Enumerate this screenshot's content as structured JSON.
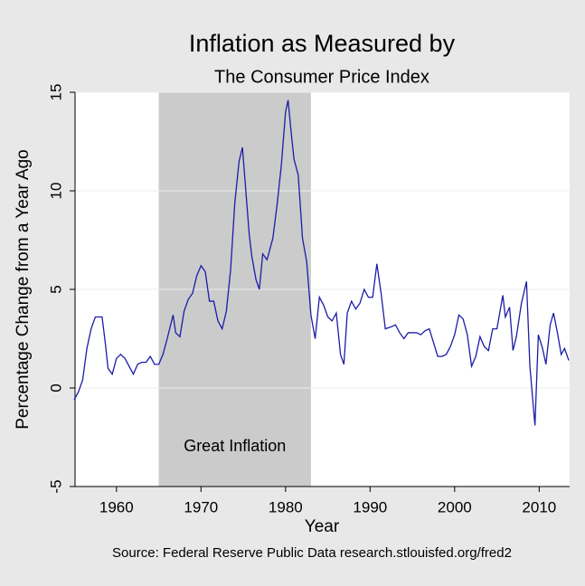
{
  "chart_data": {
    "type": "line",
    "title": "Inflation as Measured by",
    "subtitle": "The Consumer Price Index",
    "x_label": "Year",
    "y_label": "Percentage Change from a Year Ago",
    "source": "Source: Federal Reserve Public Data research.stlouisfed.org/fred2",
    "annotation": "Great Inflation",
    "shaded_region": [
      1965,
      1983
    ],
    "xlim": [
      1955.1,
      2013.6
    ],
    "ylim": [
      -5,
      15
    ],
    "xticks": [
      1960,
      1970,
      1980,
      1990,
      2000,
      2010
    ],
    "yticks": [
      -5,
      0,
      5,
      10,
      15
    ],
    "grid": true,
    "x": [
      1955.0,
      1955.5,
      1956.0,
      1956.5,
      1957.0,
      1957.5,
      1958.0,
      1958.3,
      1958.7,
      1959.0,
      1959.5,
      1960.0,
      1960.5,
      1961.0,
      1961.5,
      1962.0,
      1962.5,
      1963.0,
      1963.5,
      1964.0,
      1964.5,
      1965.0,
      1965.5,
      1966.0,
      1966.7,
      1967.0,
      1967.5,
      1968.0,
      1968.5,
      1969.0,
      1969.5,
      1970.0,
      1970.5,
      1971.0,
      1971.5,
      1972.0,
      1972.5,
      1973.0,
      1973.5,
      1974.0,
      1974.5,
      1974.9,
      1975.3,
      1975.7,
      1976.0,
      1976.5,
      1976.9,
      1977.3,
      1977.8,
      1978.0,
      1978.5,
      1979.0,
      1979.5,
      1980.0,
      1980.3,
      1980.7,
      1981.0,
      1981.5,
      1982.0,
      1982.5,
      1983.0,
      1983.5,
      1984.0,
      1984.5,
      1985.0,
      1985.5,
      1986.0,
      1986.5,
      1986.9,
      1987.3,
      1987.8,
      1988.3,
      1988.8,
      1989.3,
      1989.8,
      1990.3,
      1990.8,
      1991.3,
      1991.8,
      1992.5,
      1993.0,
      1993.5,
      1994.0,
      1994.5,
      1995.0,
      1995.5,
      1996.0,
      1996.5,
      1997.0,
      1997.5,
      1998.0,
      1998.5,
      1999.0,
      1999.5,
      2000.0,
      2000.5,
      2001.0,
      2001.5,
      2002.0,
      2002.5,
      2003.0,
      2003.5,
      2004.0,
      2004.5,
      2005.0,
      2005.7,
      2006.0,
      2006.5,
      2006.9,
      2007.3,
      2007.9,
      2008.5,
      2008.9,
      2009.5,
      2009.9,
      2010.4,
      2010.8,
      2011.3,
      2011.7,
      2012.2,
      2012.6,
      2013.0,
      2013.5
    ],
    "series": [
      {
        "name": "CPI",
        "color": "#1c1ca8",
        "values": [
          -0.6,
          -0.2,
          0.4,
          2.0,
          3.0,
          3.6,
          3.6,
          3.6,
          2.2,
          1.0,
          0.7,
          1.5,
          1.7,
          1.5,
          1.1,
          0.7,
          1.2,
          1.3,
          1.3,
          1.6,
          1.2,
          1.2,
          1.7,
          2.5,
          3.7,
          2.8,
          2.6,
          3.9,
          4.5,
          4.8,
          5.7,
          6.2,
          5.9,
          4.4,
          4.4,
          3.4,
          3.0,
          3.9,
          6.0,
          9.4,
          11.5,
          12.2,
          10.0,
          7.8,
          6.7,
          5.5,
          5.0,
          6.8,
          6.5,
          6.8,
          7.6,
          9.3,
          11.3,
          14.0,
          14.6,
          12.8,
          11.6,
          10.8,
          7.6,
          6.4,
          3.7,
          2.5,
          4.6,
          4.2,
          3.6,
          3.4,
          3.8,
          1.7,
          1.2,
          3.8,
          4.4,
          4.0,
          4.3,
          5.0,
          4.6,
          4.6,
          6.3,
          4.8,
          3.0,
          3.1,
          3.2,
          2.8,
          2.5,
          2.8,
          2.8,
          2.8,
          2.7,
          2.9,
          3.0,
          2.3,
          1.6,
          1.6,
          1.7,
          2.1,
          2.7,
          3.7,
          3.5,
          2.7,
          1.1,
          1.6,
          2.6,
          2.1,
          1.9,
          3.0,
          3.0,
          4.7,
          3.6,
          4.1,
          1.9,
          2.6,
          4.3,
          5.4,
          1.1,
          -1.9,
          2.7,
          2.0,
          1.2,
          3.2,
          3.8,
          2.7,
          1.7,
          2.0,
          1.4
        ]
      }
    ]
  }
}
